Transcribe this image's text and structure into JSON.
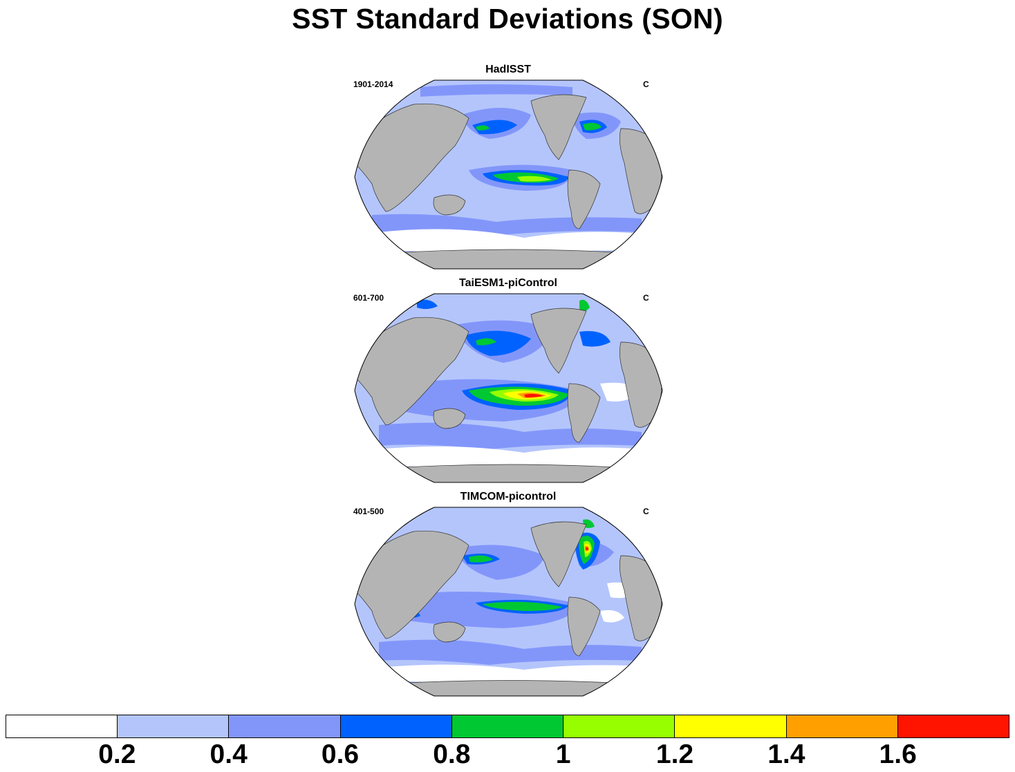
{
  "title": "SST Standard Deviations (SON)",
  "panels": [
    {
      "title": "HadISST",
      "period": "1901-2014",
      "units": "C"
    },
    {
      "title": "TaiESM1-piControl",
      "period": "601-700",
      "units": "C"
    },
    {
      "title": "TIMCOM-picontrol",
      "period": "401-500",
      "units": "C"
    }
  ],
  "colorbar": {
    "colors": [
      "#ffffff",
      "#b4c5fc",
      "#8296fa",
      "#0062fe",
      "#00c832",
      "#97fe00",
      "#ffff00",
      "#ffa000",
      "#ff1400"
    ],
    "tick_labels": [
      "0.2",
      "0.4",
      "0.6",
      "0.8",
      "1",
      "1.2",
      "1.4",
      "1.6"
    ],
    "levels": [
      0.2,
      0.4,
      0.6,
      0.8,
      1.0,
      1.2,
      1.4,
      1.6
    ]
  },
  "colors": {
    "land": "#b4b4b4",
    "ocean_base": "#b4c5fc"
  }
}
